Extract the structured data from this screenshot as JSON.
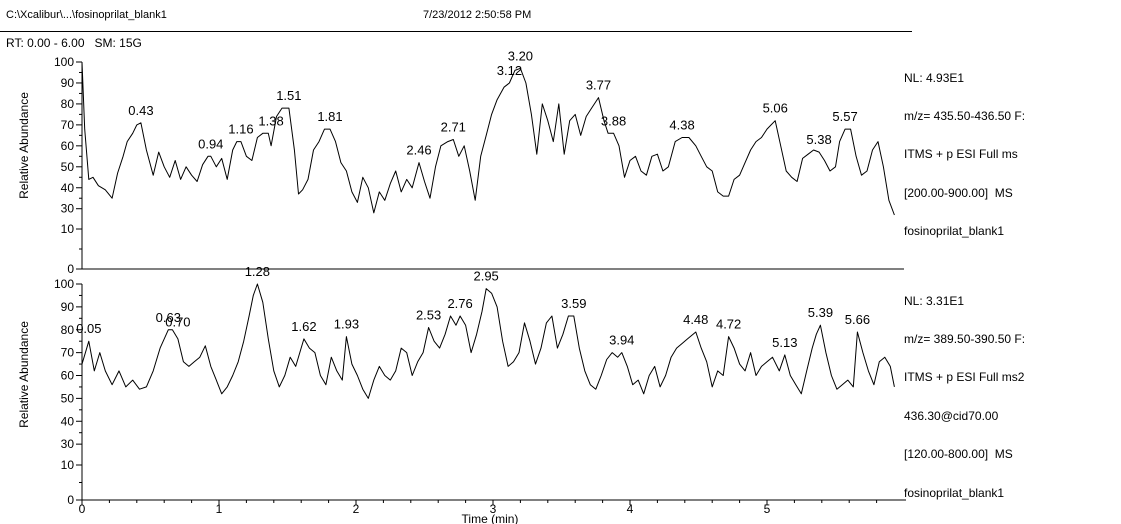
{
  "header": {
    "file_path": "C:\\Xcalibur\\...\\fosinoprilat_blank1",
    "timestamp": "7/23/2012 2:50:58 PM"
  },
  "rt_range": "RT: 0.00 - 6.00   SM: 15G",
  "panels": [
    {
      "info_lines": [
        "NL: 4.93E1",
        "m/z= 435.50-436.50 F:",
        "ITMS + p ESI Full ms",
        "[200.00-900.00]  MS",
        "fosinoprilat_blank1"
      ]
    },
    {
      "info_lines": [
        "NL: 3.31E1",
        "m/z= 389.50-390.50 F:",
        "ITMS + p ESI Full ms2",
        "436.30@cid70.00",
        "[120.00-800.00]  MS",
        "fosinoprilat_blank1"
      ]
    }
  ],
  "chart_data": [
    {
      "type": "line",
      "xlabel": "",
      "ylabel": "Relative Abundance",
      "xlim": [
        0,
        6
      ],
      "ylim": [
        0,
        100
      ],
      "yticks": [
        0,
        10,
        30,
        40,
        50,
        60,
        70,
        80,
        90,
        100
      ],
      "yaxis_break": [
        10,
        27
      ],
      "peak_labels": [
        {
          "label": "0.43",
          "x": 0.43,
          "y": 71
        },
        {
          "label": "0.94",
          "x": 0.94,
          "y": 55
        },
        {
          "label": "1.16",
          "x": 1.16,
          "y": 62
        },
        {
          "label": "1.38",
          "x": 1.38,
          "y": 66
        },
        {
          "label": "1.51",
          "x": 1.51,
          "y": 78
        },
        {
          "label": "1.81",
          "x": 1.81,
          "y": 68
        },
        {
          "label": "2.46",
          "x": 2.46,
          "y": 52
        },
        {
          "label": "2.71",
          "x": 2.71,
          "y": 63
        },
        {
          "label": "3.12",
          "x": 3.12,
          "y": 90
        },
        {
          "label": "3.20",
          "x": 3.2,
          "y": 97
        },
        {
          "label": "3.77",
          "x": 3.77,
          "y": 83
        },
        {
          "label": "3.88",
          "x": 3.88,
          "y": 66
        },
        {
          "label": "4.38",
          "x": 4.38,
          "y": 64
        },
        {
          "label": "5.06",
          "x": 5.06,
          "y": 72
        },
        {
          "label": "5.38",
          "x": 5.38,
          "y": 57
        },
        {
          "label": "5.57",
          "x": 5.57,
          "y": 68
        }
      ],
      "series": [
        {
          "x": [
            0.0,
            0.02,
            0.05,
            0.08,
            0.12,
            0.17,
            0.22,
            0.26,
            0.3,
            0.33,
            0.37,
            0.4,
            0.43,
            0.47,
            0.52,
            0.56,
            0.6,
            0.64,
            0.68,
            0.72,
            0.76,
            0.8,
            0.84,
            0.88,
            0.92,
            0.94,
            0.98,
            1.02,
            1.06,
            1.1,
            1.13,
            1.16,
            1.2,
            1.24,
            1.28,
            1.32,
            1.36,
            1.38,
            1.42,
            1.46,
            1.51,
            1.55,
            1.58,
            1.61,
            1.65,
            1.69,
            1.73,
            1.77,
            1.81,
            1.85,
            1.89,
            1.93,
            1.97,
            2.01,
            2.05,
            2.09,
            2.13,
            2.17,
            2.21,
            2.25,
            2.29,
            2.33,
            2.37,
            2.41,
            2.46,
            2.5,
            2.54,
            2.58,
            2.62,
            2.67,
            2.71,
            2.75,
            2.79,
            2.83,
            2.87,
            2.91,
            2.95,
            2.99,
            3.03,
            3.08,
            3.12,
            3.16,
            3.2,
            3.24,
            3.28,
            3.32,
            3.36,
            3.4,
            3.44,
            3.48,
            3.52,
            3.56,
            3.6,
            3.64,
            3.68,
            3.72,
            3.77,
            3.81,
            3.84,
            3.88,
            3.92,
            3.96,
            4.0,
            4.04,
            4.08,
            4.12,
            4.16,
            4.2,
            4.24,
            4.28,
            4.33,
            4.38,
            4.43,
            4.48,
            4.52,
            4.56,
            4.6,
            4.64,
            4.68,
            4.72,
            4.76,
            4.8,
            4.84,
            4.88,
            4.92,
            4.96,
            5.0,
            5.03,
            5.06,
            5.1,
            5.14,
            5.18,
            5.22,
            5.26,
            5.3,
            5.34,
            5.38,
            5.42,
            5.46,
            5.5,
            5.53,
            5.57,
            5.61,
            5.65,
            5.69,
            5.73,
            5.77,
            5.81,
            5.85,
            5.89,
            5.93
          ],
          "y": [
            100,
            68,
            44,
            45,
            41,
            39,
            35,
            47,
            55,
            62,
            66,
            70,
            71,
            58,
            46,
            57,
            50,
            45,
            53,
            44,
            50,
            46,
            43,
            51,
            55,
            55,
            50,
            54,
            44,
            58,
            62,
            62,
            55,
            53,
            64,
            66,
            66,
            60,
            74,
            78,
            78,
            58,
            37,
            39,
            44,
            58,
            62,
            68,
            68,
            62,
            52,
            48,
            38,
            33,
            45,
            40,
            28,
            38,
            34,
            42,
            48,
            38,
            44,
            40,
            52,
            43,
            35,
            50,
            60,
            62,
            63,
            55,
            60,
            48,
            34,
            55,
            65,
            75,
            82,
            88,
            90,
            96,
            97,
            90,
            75,
            56,
            80,
            72,
            62,
            80,
            56,
            72,
            75,
            65,
            74,
            78,
            83,
            72,
            66,
            66,
            60,
            45,
            53,
            55,
            48,
            46,
            55,
            56,
            48,
            50,
            62,
            64,
            64,
            60,
            55,
            50,
            48,
            38,
            36,
            36,
            44,
            46,
            52,
            58,
            62,
            64,
            68,
            70,
            72,
            60,
            48,
            45,
            43,
            54,
            56,
            58,
            57,
            53,
            48,
            50,
            62,
            68,
            68,
            55,
            46,
            48,
            58,
            62,
            50,
            34,
            26
          ]
        }
      ]
    },
    {
      "type": "line",
      "xlabel": "Time (min)",
      "ylabel": "Relative Abundance",
      "xlim": [
        0,
        6
      ],
      "ylim": [
        0,
        100
      ],
      "yticks": [
        0,
        10,
        30,
        40,
        50,
        60,
        70,
        80,
        90,
        100
      ],
      "xticks": [
        0,
        1,
        2,
        3,
        4,
        5
      ],
      "yaxis_break": [
        10,
        27
      ],
      "peak_labels": [
        {
          "label": "0.05",
          "x": 0.05,
          "y": 75
        },
        {
          "label": "0.63",
          "x": 0.63,
          "y": 80
        },
        {
          "label": "0.70",
          "x": 0.7,
          "y": 78
        },
        {
          "label": "1.28",
          "x": 1.28,
          "y": 100
        },
        {
          "label": "1.62",
          "x": 1.62,
          "y": 76
        },
        {
          "label": "1.93",
          "x": 1.93,
          "y": 77
        },
        {
          "label": "2.53",
          "x": 2.53,
          "y": 81
        },
        {
          "label": "2.76",
          "x": 2.76,
          "y": 86
        },
        {
          "label": "2.95",
          "x": 2.95,
          "y": 98
        },
        {
          "label": "3.59",
          "x": 3.59,
          "y": 86
        },
        {
          "label": "3.94",
          "x": 3.94,
          "y": 70
        },
        {
          "label": "4.48",
          "x": 4.48,
          "y": 79
        },
        {
          "label": "4.72",
          "x": 4.72,
          "y": 77
        },
        {
          "label": "5.13",
          "x": 5.13,
          "y": 69
        },
        {
          "label": "5.39",
          "x": 5.39,
          "y": 82
        },
        {
          "label": "5.66",
          "x": 5.66,
          "y": 79
        }
      ],
      "series": [
        {
          "x": [
            0.0,
            0.05,
            0.09,
            0.13,
            0.17,
            0.22,
            0.27,
            0.32,
            0.37,
            0.42,
            0.47,
            0.52,
            0.57,
            0.63,
            0.66,
            0.7,
            0.74,
            0.78,
            0.82,
            0.86,
            0.9,
            0.94,
            0.98,
            1.02,
            1.06,
            1.1,
            1.14,
            1.18,
            1.22,
            1.25,
            1.28,
            1.32,
            1.36,
            1.4,
            1.44,
            1.48,
            1.52,
            1.56,
            1.59,
            1.62,
            1.66,
            1.7,
            1.74,
            1.78,
            1.82,
            1.86,
            1.9,
            1.93,
            1.97,
            2.01,
            2.05,
            2.09,
            2.13,
            2.17,
            2.21,
            2.25,
            2.29,
            2.33,
            2.37,
            2.41,
            2.45,
            2.49,
            2.53,
            2.57,
            2.61,
            2.65,
            2.69,
            2.73,
            2.76,
            2.8,
            2.84,
            2.88,
            2.92,
            2.95,
            2.99,
            3.03,
            3.07,
            3.11,
            3.15,
            3.19,
            3.23,
            3.27,
            3.31,
            3.35,
            3.39,
            3.43,
            3.47,
            3.51,
            3.55,
            3.59,
            3.63,
            3.67,
            3.71,
            3.75,
            3.79,
            3.83,
            3.87,
            3.91,
            3.94,
            3.98,
            4.02,
            4.06,
            4.1,
            4.14,
            4.18,
            4.22,
            4.26,
            4.3,
            4.34,
            4.38,
            4.42,
            4.48,
            4.52,
            4.56,
            4.6,
            4.64,
            4.68,
            4.72,
            4.76,
            4.8,
            4.84,
            4.88,
            4.92,
            4.96,
            5.0,
            5.04,
            5.09,
            5.13,
            5.17,
            5.21,
            5.25,
            5.29,
            5.33,
            5.36,
            5.39,
            5.43,
            5.47,
            5.51,
            5.55,
            5.59,
            5.63,
            5.66,
            5.7,
            5.74,
            5.78,
            5.82,
            5.86,
            5.9,
            5.93
          ],
          "y": [
            65,
            75,
            62,
            70,
            62,
            56,
            62,
            55,
            58,
            54,
            55,
            62,
            72,
            80,
            80,
            76,
            66,
            64,
            66,
            68,
            73,
            64,
            58,
            52,
            55,
            60,
            66,
            75,
            86,
            95,
            100,
            92,
            76,
            62,
            55,
            60,
            68,
            64,
            70,
            76,
            72,
            70,
            60,
            56,
            68,
            62,
            58,
            77,
            65,
            60,
            54,
            50,
            58,
            64,
            60,
            58,
            62,
            72,
            70,
            60,
            66,
            70,
            81,
            75,
            72,
            78,
            86,
            82,
            86,
            82,
            70,
            78,
            88,
            98,
            96,
            90,
            75,
            64,
            66,
            70,
            83,
            75,
            65,
            72,
            83,
            86,
            72,
            78,
            86,
            86,
            72,
            62,
            56,
            54,
            60,
            67,
            70,
            68,
            70,
            64,
            56,
            58,
            52,
            60,
            64,
            55,
            60,
            68,
            72,
            74,
            76,
            79,
            72,
            66,
            55,
            62,
            60,
            77,
            72,
            65,
            62,
            70,
            60,
            64,
            66,
            68,
            62,
            69,
            60,
            56,
            52,
            62,
            72,
            78,
            82,
            70,
            60,
            54,
            56,
            58,
            55,
            79,
            70,
            62,
            56,
            66,
            68,
            64,
            55
          ]
        }
      ]
    }
  ]
}
